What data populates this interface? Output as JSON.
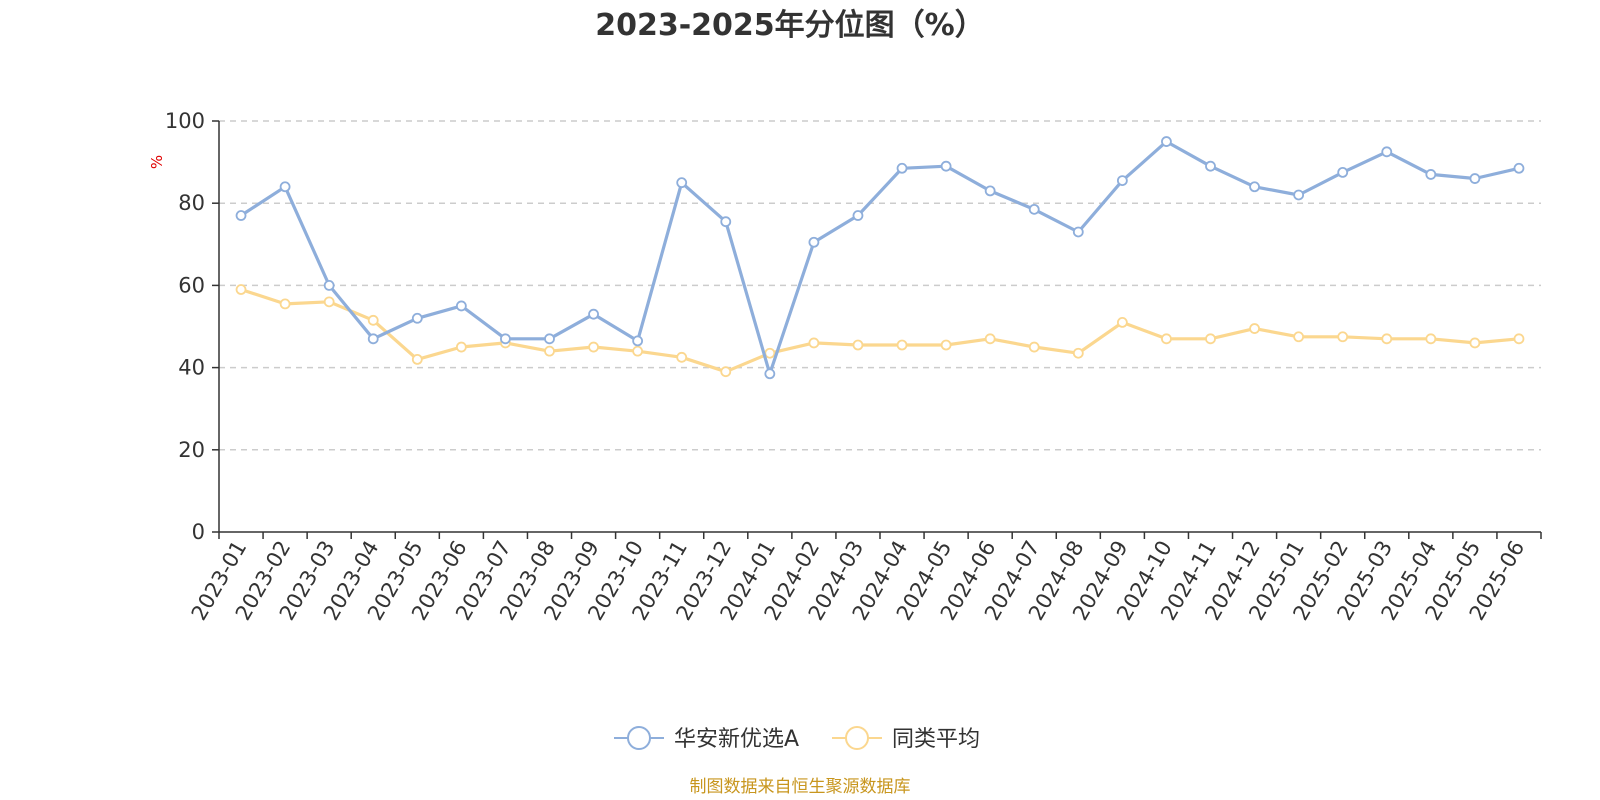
{
  "chart_data": {
    "type": "line",
    "title": "2023-2025年分位图（%）",
    "ylabel": "%",
    "ylim": [
      0,
      100
    ],
    "yticks": [
      0,
      20,
      40,
      60,
      80,
      100
    ],
    "grid": true,
    "legend_position": "bottom-center",
    "categories": [
      "2023-01",
      "2023-02",
      "2023-03",
      "2023-04",
      "2023-05",
      "2023-06",
      "2023-07",
      "2023-08",
      "2023-09",
      "2023-10",
      "2023-11",
      "2023-12",
      "2024-01",
      "2024-02",
      "2024-03",
      "2024-04",
      "2024-05",
      "2024-06",
      "2024-07",
      "2024-08",
      "2024-09",
      "2024-10",
      "2024-11",
      "2024-12",
      "2025-01",
      "2025-02",
      "2025-03",
      "2025-04",
      "2025-05",
      "2025-06"
    ],
    "series": [
      {
        "name": "华安新优选A",
        "color": "#8eaedb",
        "values": [
          77,
          84,
          60,
          47,
          52,
          55,
          47,
          47,
          53,
          46.5,
          85,
          75.5,
          38.5,
          70.5,
          77,
          88.5,
          89,
          83,
          78.5,
          73,
          85.5,
          95,
          89,
          84,
          82,
          87.5,
          92.5,
          87,
          86,
          88.5
        ]
      },
      {
        "name": "同类平均",
        "color": "#fbd78f",
        "values": [
          59,
          55.5,
          56,
          51.5,
          42,
          45,
          46,
          44,
          45,
          44,
          42.5,
          39,
          43.5,
          46,
          45.5,
          45.5,
          45.5,
          47,
          45,
          43.5,
          51,
          47,
          47,
          49.5,
          47.5,
          47.5,
          47,
          47,
          46,
          47
        ]
      }
    ]
  },
  "source": {
    "text": "制图数据来自恒生聚源数据库",
    "color": "#c8961e"
  }
}
